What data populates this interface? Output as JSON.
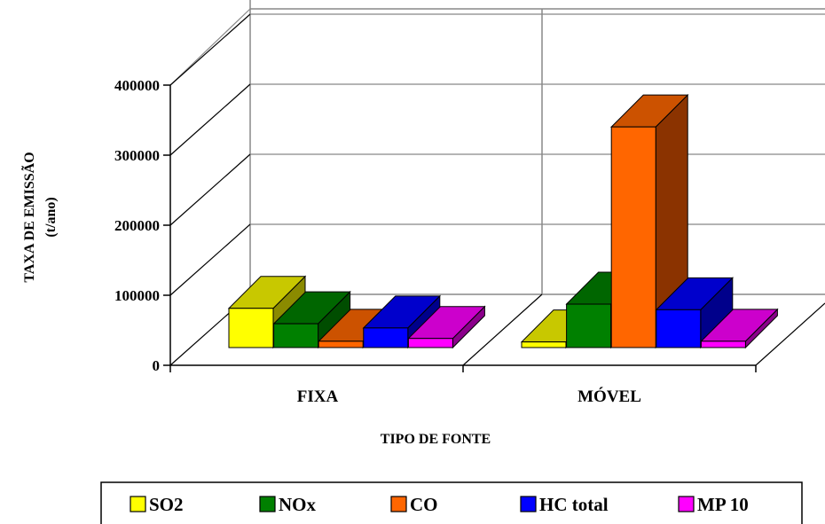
{
  "chart_data": {
    "type": "bar",
    "categories": [
      "FIXA",
      "MÓVEL"
    ],
    "series": [
      {
        "name": "SO2",
        "values": [
          56000,
          8000
        ],
        "color": "#ffff00",
        "side": "#8b8b00",
        "top": "#c8c800"
      },
      {
        "name": "NOx",
        "values": [
          34000,
          62000
        ],
        "color": "#008000",
        "side": "#004d00",
        "top": "#006600"
      },
      {
        "name": "CO",
        "values": [
          9000,
          315000
        ],
        "color": "#ff6600",
        "side": "#8b3300",
        "top": "#cc5200"
      },
      {
        "name": "HC total",
        "values": [
          28000,
          54000
        ],
        "color": "#0000ff",
        "side": "#00008b",
        "top": "#0000cc"
      },
      {
        "name": "MP 10",
        "values": [
          13000,
          9000
        ],
        "color": "#ff00ff",
        "side": "#8b008b",
        "top": "#cc00cc"
      }
    ],
    "yticks": [
      "0",
      "100000",
      "200000",
      "300000",
      "400000"
    ],
    "ylim": [
      0,
      400000
    ],
    "ylabel": "TAXA DE EMISSÃO",
    "ylabel_unit": "(t/ano)",
    "xlabel": "TIPO DE FONTE",
    "legend_position": "bottom",
    "grid": true
  }
}
